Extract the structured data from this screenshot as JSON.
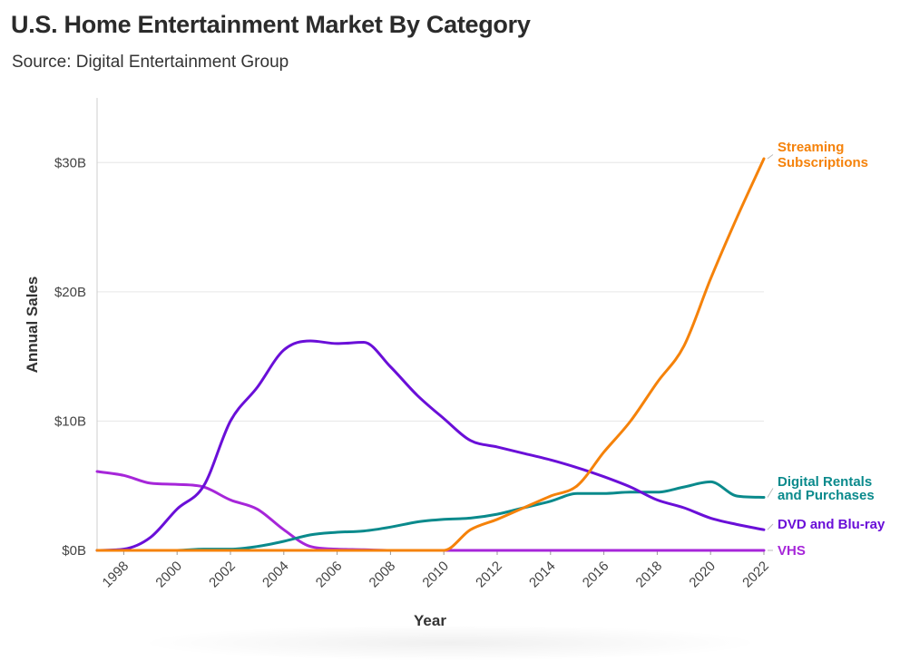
{
  "title": "U.S. Home Entertainment Market By Category",
  "subtitle": "Source: Digital Entertainment Group",
  "chart_data": {
    "type": "line",
    "xlabel": "Year",
    "ylabel": "Annual Sales",
    "xlim": [
      1997,
      2022
    ],
    "ylim": [
      0,
      35
    ],
    "x_ticks": [
      1998,
      2000,
      2002,
      2004,
      2006,
      2008,
      2010,
      2012,
      2014,
      2016,
      2018,
      2020,
      2022
    ],
    "y_ticks": [
      {
        "value": 0,
        "label": "$0B"
      },
      {
        "value": 10,
        "label": "$10B"
      },
      {
        "value": 20,
        "label": "$20B"
      },
      {
        "value": 30,
        "label": "$30B"
      }
    ],
    "grid": "horizontal",
    "legend": "direct labels at right end of lines",
    "x": [
      1997,
      1998,
      1999,
      2000,
      2001,
      2002,
      2003,
      2004,
      2005,
      2006,
      2007,
      2008,
      2009,
      2010,
      2011,
      2012,
      2013,
      2014,
      2015,
      2016,
      2017,
      2018,
      2019,
      2020,
      2021,
      2022
    ],
    "series": [
      {
        "name": "Streaming Subscriptions",
        "label_lines": [
          "Streaming",
          "Subscriptions"
        ],
        "color": "#f5820a",
        "values": [
          0,
          0,
          0,
          0,
          0,
          0,
          0,
          0,
          0,
          0,
          0,
          0,
          0,
          0,
          1.6,
          2.4,
          3.3,
          4.2,
          5.0,
          7.6,
          10.0,
          13.0,
          15.8,
          21.0,
          25.8,
          30.3
        ]
      },
      {
        "name": "Digital Rentals and Purchases",
        "label_lines": [
          "Digital Rentals",
          "and Purchases"
        ],
        "color": "#0a8a8c",
        "values": [
          0,
          0,
          0,
          0,
          0.1,
          0.1,
          0.3,
          0.7,
          1.2,
          1.4,
          1.5,
          1.8,
          2.2,
          2.4,
          2.5,
          2.8,
          3.3,
          3.8,
          4.4,
          4.4,
          4.5,
          4.5,
          4.9,
          5.3,
          4.2,
          4.1
        ]
      },
      {
        "name": "DVD and Blu-ray",
        "label_lines": [
          "DVD and Blu-ray"
        ],
        "color": "#6a0fd8",
        "values": [
          0,
          0.1,
          1.0,
          3.2,
          5.0,
          10.0,
          12.6,
          15.5,
          16.2,
          16.0,
          16.1,
          14.2,
          12.0,
          10.2,
          8.5,
          8.0,
          7.5,
          7.0,
          6.4,
          5.7,
          4.9,
          3.9,
          3.3,
          2.5,
          2.0,
          1.6
        ]
      },
      {
        "name": "VHS",
        "label_lines": [
          "VHS"
        ],
        "color": "#a626d9",
        "values": [
          6.1,
          5.8,
          5.2,
          5.1,
          4.9,
          3.9,
          3.2,
          1.6,
          0.3,
          0.1,
          0.05,
          0,
          0,
          0,
          0,
          0,
          0,
          0,
          0,
          0,
          0,
          0,
          0,
          0,
          0,
          0
        ]
      }
    ]
  }
}
